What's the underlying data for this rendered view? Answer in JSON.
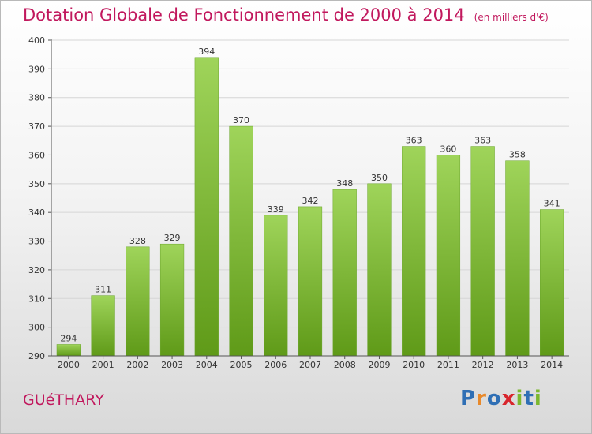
{
  "title": "Dotation Globale de Fonctionnement de 2000 à 2014",
  "unit_note": "(en milliers d'€)",
  "commune": "GUéTHARY",
  "logo": {
    "letters": [
      "P",
      "r",
      "o",
      "x",
      "i",
      "t",
      "i"
    ],
    "colors": [
      "#2f6fb5",
      "#e8892b",
      "#2f6fb5",
      "#d8262d",
      "#7cb82f",
      "#2f6fb5",
      "#7cb82f"
    ]
  },
  "colors": {
    "bar_top": "#9fd45a",
    "bar_bottom": "#5f9a18",
    "title": "#c1185d",
    "grid": "#d6d6d6"
  },
  "chart_data": {
    "type": "bar",
    "title": "Dotation Globale de Fonctionnement de 2000 à 2014",
    "categories": [
      "2000",
      "2001",
      "2002",
      "2003",
      "2004",
      "2005",
      "2006",
      "2007",
      "2008",
      "2009",
      "2010",
      "2011",
      "2012",
      "2013",
      "2014"
    ],
    "values": [
      294,
      311,
      328,
      329,
      394,
      370,
      339,
      342,
      348,
      350,
      363,
      360,
      363,
      358,
      341
    ],
    "ylim": [
      290,
      400
    ],
    "yticks": [
      290,
      300,
      310,
      320,
      330,
      340,
      350,
      360,
      370,
      380,
      390,
      400
    ],
    "xlabel": "",
    "ylabel": "",
    "grid": true,
    "data_labels": true
  }
}
